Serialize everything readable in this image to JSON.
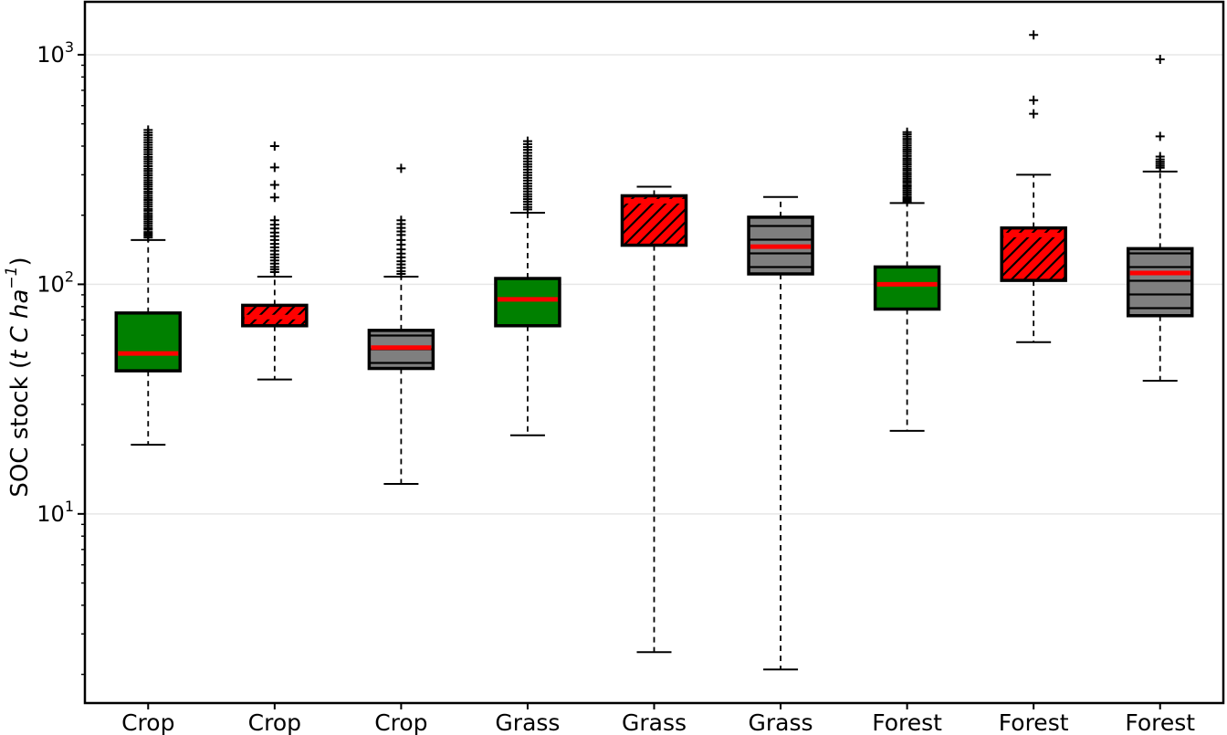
{
  "figure": {
    "background": "#ffffff"
  },
  "chart_data": {
    "type": "boxplot",
    "title": "",
    "xlabel": "",
    "ylabel": "SOC stock (t C ha⁻¹)",
    "ylabel_rich": {
      "prefix": "SOC stock (",
      "italic": "t C ha",
      "superscript": "−1",
      "suffix": ")"
    },
    "yscale": "log",
    "ylim": [
      1.5,
      1700
    ],
    "grid": "horizontal-major-only",
    "legend": "none",
    "yticks": [
      {
        "value": 10,
        "base": "10",
        "exponent": "1"
      },
      {
        "value": 100,
        "base": "10",
        "exponent": "2"
      },
      {
        "value": 1000,
        "base": "10",
        "exponent": "3"
      }
    ],
    "categories": [
      "Crop",
      "Crop",
      "Crop",
      "Grass",
      "Grass",
      "Grass",
      "Forest",
      "Forest",
      "Forest"
    ],
    "colors": {
      "green": "#008000",
      "red": "#ff0000",
      "gray": "#7f7f7f",
      "median": "#ff0000",
      "grid": "#e7e7e7",
      "axis": "#000000",
      "outlier": "#000000"
    },
    "boxes": [
      {
        "category": "Crop",
        "fill": "green",
        "hatch": "none",
        "whisker_low": 20,
        "q1": 42,
        "median": 50,
        "q3": 75,
        "whisker_high": 156,
        "outliers": [
          470,
          458,
          447,
          436,
          425,
          415,
          405,
          395,
          386,
          377,
          368,
          359,
          351,
          343,
          335,
          327,
          319,
          312,
          305,
          298,
          291,
          284,
          278,
          272,
          266,
          260,
          254,
          249,
          243,
          238,
          233,
          228,
          223,
          218,
          213,
          209,
          204,
          200,
          196,
          192,
          188,
          184,
          180,
          176,
          173,
          169,
          166,
          163,
          160
        ]
      },
      {
        "category": "Crop",
        "fill": "red",
        "hatch": "diagonal",
        "whisker_low": 38.5,
        "q1": 66,
        "median": 72,
        "q3": 81,
        "whisker_high": 108,
        "outliers": [
          400,
          323,
          271,
          239,
          190,
          182,
          175,
          168,
          162,
          156,
          150,
          145,
          140,
          135,
          131,
          127,
          123,
          119,
          116,
          113
        ]
      },
      {
        "category": "Crop",
        "fill": "gray",
        "hatch": "horizontal",
        "whisker_low": 13.5,
        "q1": 43,
        "median": 53,
        "q3": 63,
        "whisker_high": 108,
        "outliers": [
          320,
          190,
          183,
          176,
          170,
          164,
          156,
          149,
          142,
          136,
          131,
          126,
          122,
          118,
          114,
          111
        ]
      },
      {
        "category": "Grass",
        "fill": "green",
        "hatch": "none",
        "whisker_low": 22,
        "q1": 66,
        "median": 86,
        "q3": 106,
        "whisker_high": 205,
        "outliers": [
          420,
          408,
          396,
          385,
          374,
          363,
          353,
          343,
          334,
          325,
          316,
          307,
          299,
          291,
          283,
          275,
          268,
          261,
          254,
          247,
          241,
          235,
          229,
          223,
          217,
          212
        ]
      },
      {
        "category": "Grass",
        "fill": "red",
        "hatch": "diagonal",
        "whisker_low": 2.5,
        "q1": 148,
        "median": 230,
        "q3": 243,
        "whisker_high": 266,
        "outliers": []
      },
      {
        "category": "Grass",
        "fill": "gray",
        "hatch": "horizontal",
        "whisker_low": 2.1,
        "q1": 111,
        "median": 146,
        "q3": 196,
        "whisker_high": 240,
        "outliers": []
      },
      {
        "category": "Forest",
        "fill": "green",
        "hatch": "none",
        "whisker_low": 23,
        "q1": 78,
        "median": 100,
        "q3": 119,
        "whisker_high": 226,
        "outliers": [
          460,
          450,
          440,
          430,
          421,
          412,
          403,
          394,
          386,
          378,
          370,
          362,
          354,
          347,
          340,
          333,
          326,
          319,
          313,
          306,
          300,
          294,
          288,
          282,
          277,
          271,
          266,
          261,
          256,
          251,
          246,
          241,
          237,
          233,
          229
        ]
      },
      {
        "category": "Forest",
        "fill": "red",
        "hatch": "diagonal",
        "whisker_low": 56,
        "q1": 104,
        "median": 164,
        "q3": 176,
        "whisker_high": 300,
        "outliers": [
          553,
          634,
          1220
        ]
      },
      {
        "category": "Forest",
        "fill": "gray",
        "hatch": "horizontal",
        "whisker_low": 38,
        "q1": 73,
        "median": 112,
        "q3": 143,
        "whisker_high": 310,
        "outliers": [
          322,
          328,
          335,
          342,
          350,
          360,
          441,
          955
        ]
      }
    ]
  }
}
